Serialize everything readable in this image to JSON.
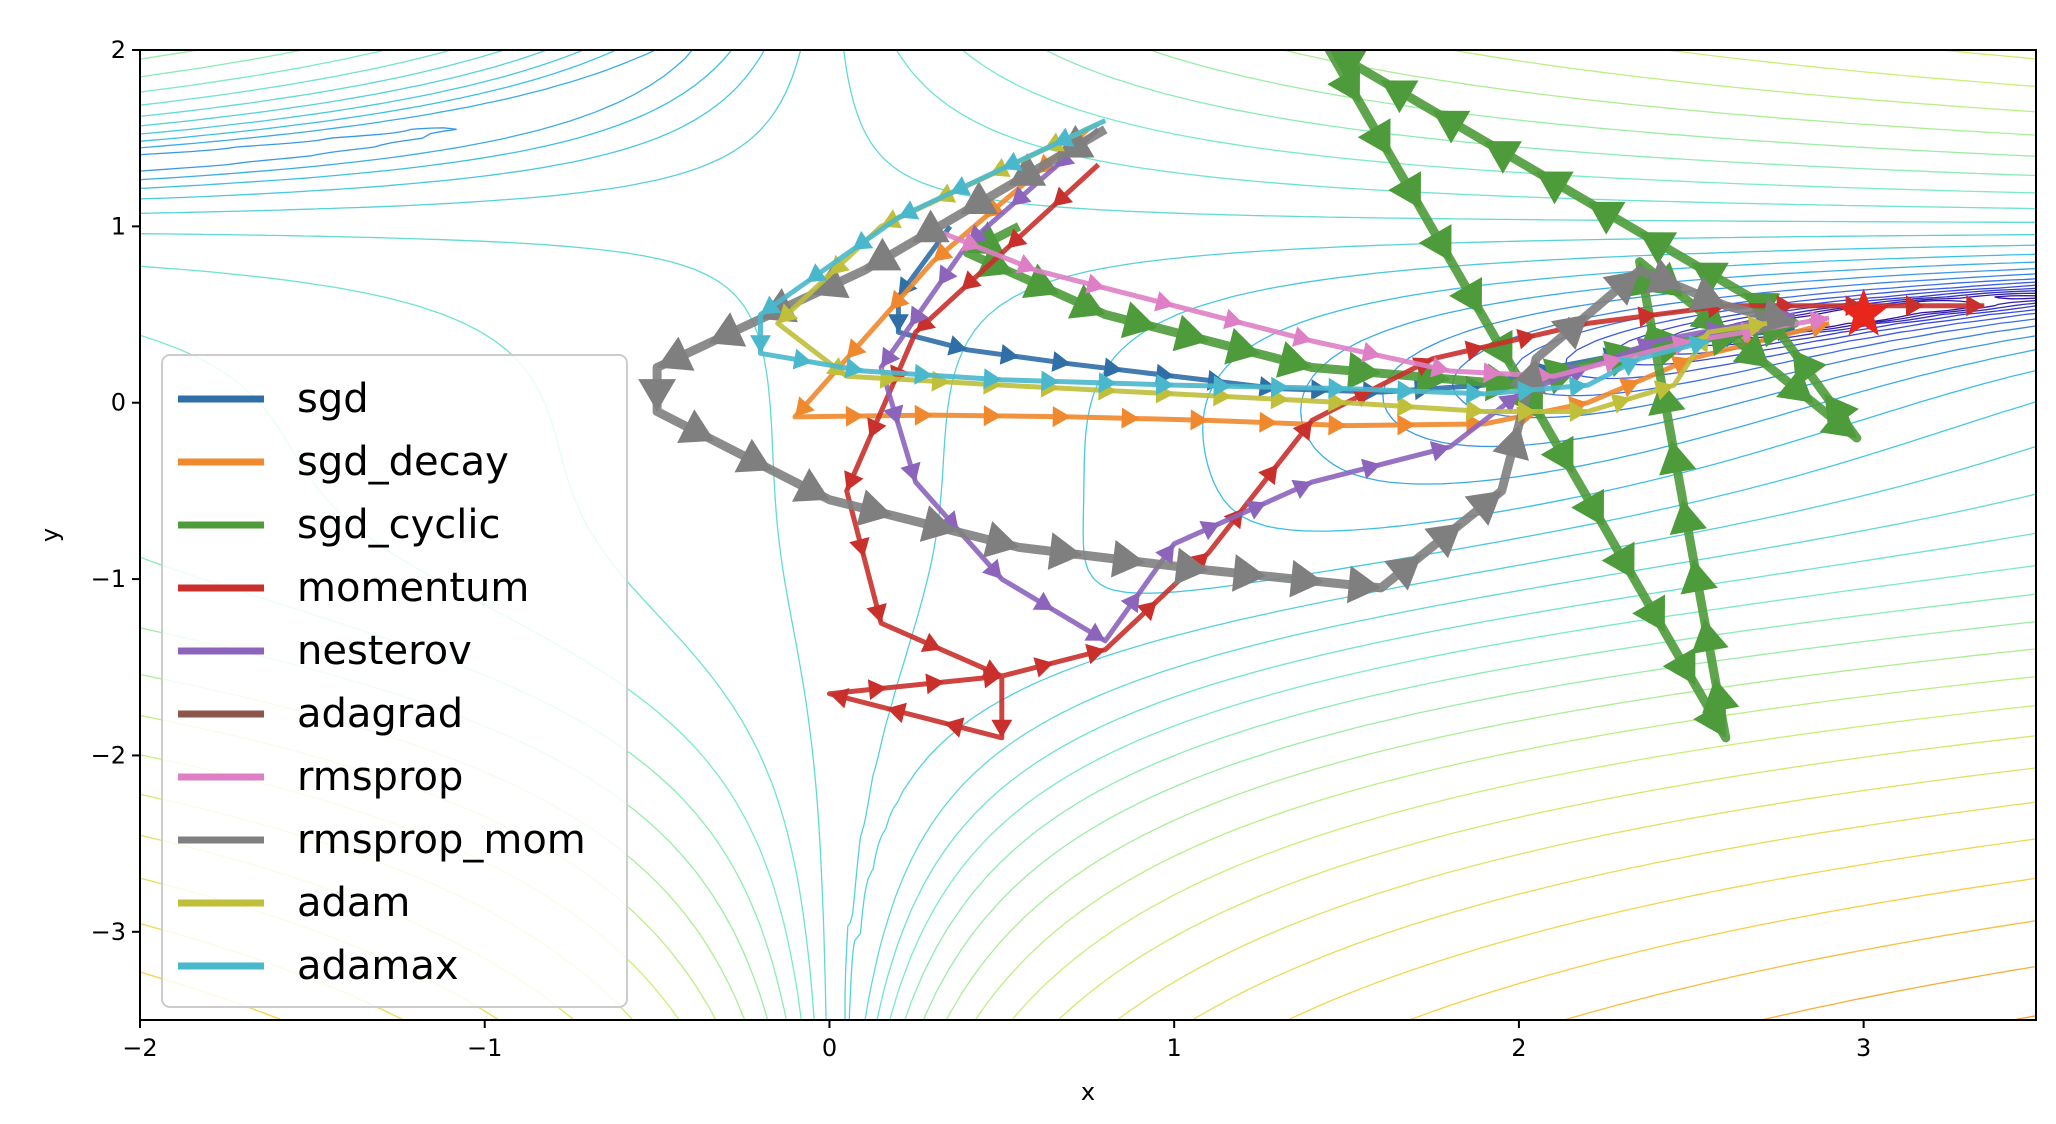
{
  "chart_data": {
    "type": "line",
    "title": "",
    "xlabel": "x",
    "ylabel": "y",
    "xlim": [
      -2,
      3.5
    ],
    "ylim": [
      -3.5,
      2
    ],
    "xticks": [
      {
        "value": -2,
        "label": "−2"
      },
      {
        "value": -1,
        "label": "−1"
      },
      {
        "value": 0,
        "label": "0"
      },
      {
        "value": 1,
        "label": "1"
      },
      {
        "value": 2,
        "label": "2"
      },
      {
        "value": 3,
        "label": "3"
      }
    ],
    "yticks": [
      {
        "value": 2,
        "label": "2"
      },
      {
        "value": 1,
        "label": "1"
      },
      {
        "value": 0,
        "label": "0"
      },
      {
        "value": -1,
        "label": "−1"
      },
      {
        "value": -2,
        "label": "−2"
      },
      {
        "value": -3,
        "label": "−3"
      }
    ],
    "grid": false,
    "legend_position": "center-left",
    "background": "contour plot of Beale function",
    "minimum": {
      "x": 3,
      "y": 0.5,
      "marker": "red star",
      "color": "#e8261c"
    },
    "series": [
      {
        "name": "sgd",
        "color": "#2f6ea7",
        "points": [
          [
            0.35,
            1.0
          ],
          [
            0.2,
            0.6
          ],
          [
            0.2,
            0.4
          ],
          [
            0.4,
            0.3
          ],
          [
            0.7,
            0.22
          ],
          [
            1.0,
            0.15
          ],
          [
            1.3,
            0.08
          ],
          [
            1.6,
            0.06
          ],
          [
            1.9,
            0.1
          ],
          [
            2.1,
            0.2
          ],
          [
            2.5,
            0.35
          ],
          [
            2.8,
            0.42
          ]
        ]
      },
      {
        "name": "sgd_decay",
        "color": "#f0882e",
        "points": [
          [
            0.75,
            1.55
          ],
          [
            0.3,
            0.8
          ],
          [
            0.05,
            0.25
          ],
          [
            -0.1,
            -0.08
          ],
          [
            0.3,
            -0.07
          ],
          [
            0.7,
            -0.08
          ],
          [
            1.1,
            -0.1
          ],
          [
            1.5,
            -0.13
          ],
          [
            1.9,
            -0.12
          ],
          [
            2.2,
            0.0
          ],
          [
            2.5,
            0.25
          ],
          [
            2.9,
            0.45
          ]
        ]
      },
      {
        "name": "sgd_cyclic",
        "color": "#4d9b3a",
        "points": [
          [
            0.55,
            1.0
          ],
          [
            0.4,
            0.85
          ],
          [
            0.8,
            0.5
          ],
          [
            1.4,
            0.2
          ],
          [
            2.0,
            0.1
          ],
          [
            2.35,
            0.3
          ],
          [
            2.8,
            0.45
          ],
          [
            1.45,
            2.0
          ],
          [
            2.6,
            -1.9
          ],
          [
            2.35,
            0.8
          ],
          [
            2.98,
            -0.2
          ],
          [
            2.7,
            0.55
          ]
        ]
      },
      {
        "name": "momentum",
        "color": "#c9302c",
        "points": [
          [
            0.78,
            1.35
          ],
          [
            0.25,
            0.4
          ],
          [
            0.05,
            -0.5
          ],
          [
            0.15,
            -1.25
          ],
          [
            0.5,
            -1.55
          ],
          [
            0.5,
            -1.9
          ],
          [
            0.0,
            -1.65
          ],
          [
            0.5,
            -1.55
          ],
          [
            0.8,
            -1.4
          ],
          [
            1.1,
            -0.85
          ],
          [
            1.4,
            -0.1
          ],
          [
            1.75,
            0.25
          ],
          [
            2.2,
            0.45
          ],
          [
            2.6,
            0.55
          ],
          [
            3.0,
            0.55
          ],
          [
            3.35,
            0.55
          ]
        ]
      },
      {
        "name": "nesterov",
        "color": "#8c64bc",
        "points": [
          [
            0.78,
            1.55
          ],
          [
            0.4,
            0.9
          ],
          [
            0.15,
            0.2
          ],
          [
            0.25,
            -0.45
          ],
          [
            0.5,
            -1.0
          ],
          [
            0.8,
            -1.35
          ],
          [
            1.0,
            -0.8
          ],
          [
            1.4,
            -0.45
          ],
          [
            1.8,
            -0.25
          ],
          [
            2.0,
            0.05
          ],
          [
            2.4,
            0.35
          ],
          [
            2.8,
            0.5
          ]
        ]
      },
      {
        "name": "adagrad",
        "color": "#8c564b",
        "points": []
      },
      {
        "name": "rmsprop",
        "color": "#de7fc5",
        "points": [
          [
            0.28,
            1.0
          ],
          [
            0.6,
            0.75
          ],
          [
            1.0,
            0.55
          ],
          [
            1.4,
            0.35
          ],
          [
            1.8,
            0.18
          ],
          [
            2.1,
            0.15
          ],
          [
            2.5,
            0.35
          ],
          [
            2.9,
            0.48
          ]
        ]
      },
      {
        "name": "rmsprop_mom",
        "color": "#7f7f7f",
        "points": [
          [
            0.8,
            1.55
          ],
          [
            0.1,
            0.75
          ],
          [
            -0.5,
            0.2
          ],
          [
            -0.5,
            -0.05
          ],
          [
            0.0,
            -0.55
          ],
          [
            0.55,
            -0.82
          ],
          [
            1.1,
            -0.95
          ],
          [
            1.6,
            -1.05
          ],
          [
            1.95,
            -0.5
          ],
          [
            2.05,
            0.25
          ],
          [
            2.35,
            0.75
          ],
          [
            2.6,
            0.55
          ],
          [
            2.8,
            0.45
          ]
        ]
      },
      {
        "name": "adam",
        "color": "#bfbf3a",
        "points": [
          [
            0.78,
            1.58
          ],
          [
            0.15,
            1.0
          ],
          [
            -0.15,
            0.45
          ],
          [
            0.05,
            0.15
          ],
          [
            0.5,
            0.1
          ],
          [
            1.0,
            0.05
          ],
          [
            1.5,
            0.0
          ],
          [
            1.9,
            -0.05
          ],
          [
            2.2,
            -0.05
          ],
          [
            2.45,
            0.1
          ],
          [
            2.55,
            0.4
          ],
          [
            2.72,
            0.45
          ]
        ]
      },
      {
        "name": "adamax",
        "color": "#4ab8cc",
        "points": [
          [
            0.8,
            1.6
          ],
          [
            0.2,
            1.05
          ],
          [
            -0.2,
            0.5
          ],
          [
            -0.2,
            0.28
          ],
          [
            0.1,
            0.18
          ],
          [
            0.5,
            0.13
          ],
          [
            1.0,
            0.1
          ],
          [
            1.5,
            0.08
          ],
          [
            1.9,
            0.05
          ],
          [
            2.2,
            0.1
          ],
          [
            2.35,
            0.25
          ],
          [
            2.55,
            0.35
          ]
        ]
      }
    ]
  }
}
